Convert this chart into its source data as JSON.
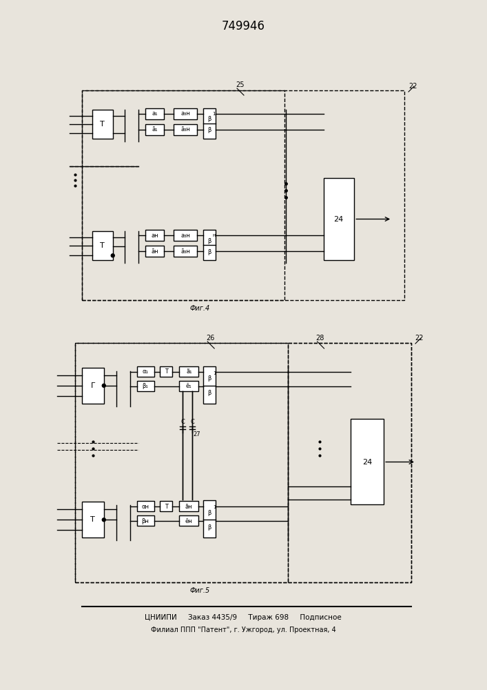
{
  "title": "749946",
  "bg_color": "#e8e4dc",
  "fig4_label": "Фиг.4",
  "fig5_label": "Фиг.5",
  "footer_line1": "ЦНИИПИ     Заказ 4435/9     Тираж 698     Подписное",
  "footer_line2": "Филиал ППП \"Патент\", г. Ужгород, ул. Проектная, 4",
  "lw": 1.0,
  "fs": 7,
  "fs_title": 12
}
